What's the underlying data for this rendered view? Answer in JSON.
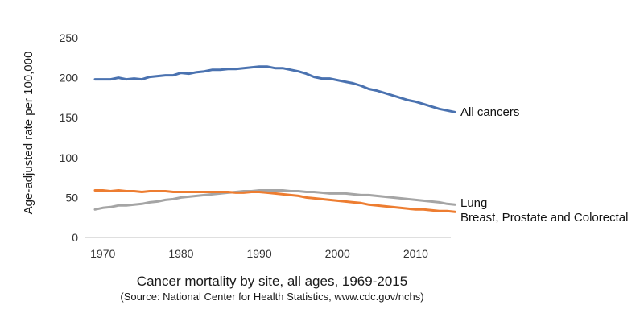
{
  "chart_data": {
    "type": "line",
    "title": "Cancer mortality by site, all ages, 1969-2015",
    "subtitle": "(Source: National Center for Health Statistics, www.cdc.gov/nchs)",
    "xlabel": "",
    "ylabel": "Age-adjusted rate per 100,000",
    "xlim": [
      1969,
      2015
    ],
    "ylim": [
      0,
      250
    ],
    "x_ticks": [
      "1970",
      "1980",
      "1990",
      "2000",
      "2010"
    ],
    "y_ticks": [
      "0",
      "50",
      "100",
      "150",
      "200",
      "250"
    ],
    "grid": false,
    "legend": "direct labels at right end of lines",
    "x": [
      1969,
      1970,
      1971,
      1972,
      1973,
      1974,
      1975,
      1976,
      1977,
      1978,
      1979,
      1980,
      1981,
      1982,
      1983,
      1984,
      1985,
      1986,
      1987,
      1988,
      1989,
      1990,
      1991,
      1992,
      1993,
      1994,
      1995,
      1996,
      1997,
      1998,
      1999,
      2000,
      2001,
      2002,
      2003,
      2004,
      2005,
      2006,
      2007,
      2008,
      2009,
      2010,
      2011,
      2012,
      2013,
      2014,
      2015
    ],
    "series": [
      {
        "name": "All cancers",
        "color": "#4a72b0",
        "values": [
          198,
          198,
          198,
          200,
          198,
          199,
          198,
          201,
          202,
          203,
          203,
          206,
          205,
          207,
          208,
          210,
          210,
          211,
          211,
          212,
          213,
          214,
          214,
          212,
          212,
          210,
          208,
          205,
          201,
          199,
          199,
          197,
          195,
          193,
          190,
          186,
          184,
          181,
          178,
          175,
          172,
          170,
          167,
          164,
          161,
          159,
          157
        ]
      },
      {
        "name": "Lung",
        "color": "#a5a5a5",
        "values": [
          35,
          37,
          38,
          40,
          40,
          41,
          42,
          44,
          45,
          47,
          48,
          50,
          51,
          52,
          53,
          54,
          55,
          56,
          57,
          58,
          58,
          59,
          59,
          59,
          59,
          58,
          58,
          57,
          57,
          56,
          55,
          55,
          55,
          54,
          53,
          53,
          52,
          51,
          50,
          49,
          48,
          47,
          46,
          45,
          44,
          42,
          41
        ]
      },
      {
        "name": "Breast, Prostate and Colorectal",
        "color": "#ed7d31",
        "values": [
          59,
          59,
          58,
          59,
          58,
          58,
          57,
          58,
          58,
          58,
          57,
          57,
          57,
          57,
          57,
          57,
          57,
          57,
          56,
          56,
          57,
          57,
          56,
          55,
          54,
          53,
          52,
          50,
          49,
          48,
          47,
          46,
          45,
          44,
          43,
          41,
          40,
          39,
          38,
          37,
          36,
          35,
          35,
          34,
          33,
          33,
          32
        ]
      }
    ]
  }
}
